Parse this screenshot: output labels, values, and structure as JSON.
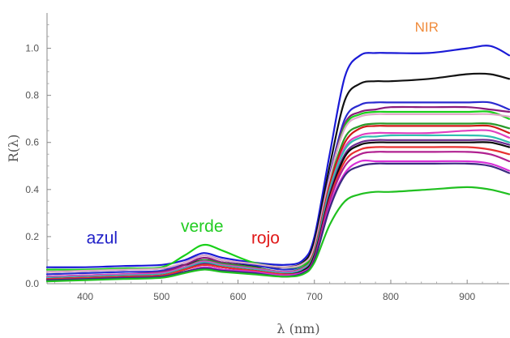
{
  "chart_data": {
    "type": "line",
    "title": "",
    "xlabel": "λ (nm)",
    "ylabel": "R(λ)",
    "xlim": [
      350,
      955
    ],
    "ylim": [
      0,
      1.15
    ],
    "x_ticks": [
      400,
      500,
      600,
      700,
      800,
      900
    ],
    "y_ticks": [
      0.0,
      0.2,
      0.4,
      0.6,
      0.8,
      1.0
    ],
    "x_tick_labels": [
      "400",
      "500",
      "600",
      "700",
      "800",
      "900"
    ],
    "y_tick_labels": [
      "0.0",
      "0.2",
      "0.4",
      "0.6",
      "0.8",
      "1.0"
    ],
    "grid": false,
    "x": [
      350,
      400,
      450,
      500,
      530,
      555,
      580,
      620,
      660,
      685,
      700,
      720,
      740,
      760,
      780,
      800,
      850,
      900,
      930,
      955
    ],
    "series": [
      {
        "color": "#1a1ad6",
        "values": [
          0.07,
          0.07,
          0.075,
          0.08,
          0.1,
          0.13,
          0.11,
          0.09,
          0.08,
          0.1,
          0.2,
          0.55,
          0.88,
          0.97,
          0.98,
          0.98,
          0.98,
          1.0,
          1.01,
          0.97
        ]
      },
      {
        "color": "#111111",
        "values": [
          0.05,
          0.055,
          0.06,
          0.065,
          0.08,
          0.1,
          0.09,
          0.075,
          0.07,
          0.09,
          0.18,
          0.5,
          0.78,
          0.85,
          0.86,
          0.86,
          0.87,
          0.89,
          0.89,
          0.87
        ]
      },
      {
        "color": "#2a2ad0",
        "values": [
          0.04,
          0.045,
          0.05,
          0.055,
          0.09,
          0.12,
          0.1,
          0.08,
          0.06,
          0.08,
          0.16,
          0.46,
          0.7,
          0.76,
          0.77,
          0.77,
          0.77,
          0.77,
          0.77,
          0.74
        ]
      },
      {
        "color": "#8b1a7a",
        "values": [
          0.03,
          0.035,
          0.04,
          0.05,
          0.08,
          0.11,
          0.09,
          0.07,
          0.05,
          0.07,
          0.15,
          0.45,
          0.68,
          0.73,
          0.74,
          0.75,
          0.75,
          0.75,
          0.74,
          0.73
        ]
      },
      {
        "color": "#19d019",
        "values": [
          0.06,
          0.06,
          0.065,
          0.07,
          0.12,
          0.165,
          0.14,
          0.09,
          0.07,
          0.08,
          0.15,
          0.44,
          0.67,
          0.72,
          0.73,
          0.73,
          0.73,
          0.73,
          0.73,
          0.7
        ]
      },
      {
        "color": "#e0a8c8",
        "values": [
          0.05,
          0.055,
          0.06,
          0.065,
          0.09,
          0.12,
          0.1,
          0.085,
          0.07,
          0.085,
          0.16,
          0.45,
          0.66,
          0.71,
          0.72,
          0.72,
          0.72,
          0.72,
          0.72,
          0.71
        ]
      },
      {
        "color": "#2a9a2a",
        "values": [
          0.03,
          0.035,
          0.04,
          0.045,
          0.07,
          0.1,
          0.085,
          0.07,
          0.05,
          0.07,
          0.14,
          0.42,
          0.62,
          0.67,
          0.68,
          0.68,
          0.68,
          0.68,
          0.68,
          0.66
        ]
      },
      {
        "color": "#d01818",
        "values": [
          0.02,
          0.025,
          0.03,
          0.035,
          0.06,
          0.08,
          0.07,
          0.06,
          0.045,
          0.06,
          0.14,
          0.42,
          0.6,
          0.66,
          0.67,
          0.67,
          0.67,
          0.67,
          0.67,
          0.64
        ]
      },
      {
        "color": "#e040c0",
        "values": [
          0.03,
          0.035,
          0.04,
          0.045,
          0.07,
          0.095,
          0.08,
          0.065,
          0.05,
          0.065,
          0.13,
          0.4,
          0.58,
          0.63,
          0.64,
          0.64,
          0.64,
          0.65,
          0.65,
          0.62
        ]
      },
      {
        "color": "#30c0b0",
        "values": [
          0.025,
          0.03,
          0.035,
          0.04,
          0.065,
          0.09,
          0.075,
          0.06,
          0.045,
          0.06,
          0.13,
          0.4,
          0.57,
          0.62,
          0.625,
          0.63,
          0.63,
          0.63,
          0.625,
          0.6
        ]
      },
      {
        "color": "#6a2a90",
        "values": [
          0.02,
          0.025,
          0.03,
          0.035,
          0.06,
          0.085,
          0.07,
          0.055,
          0.04,
          0.055,
          0.12,
          0.38,
          0.55,
          0.6,
          0.61,
          0.61,
          0.61,
          0.61,
          0.61,
          0.59
        ]
      },
      {
        "color": "#0a0a0a",
        "values": [
          0.02,
          0.025,
          0.03,
          0.035,
          0.06,
          0.08,
          0.07,
          0.055,
          0.04,
          0.055,
          0.12,
          0.37,
          0.54,
          0.59,
          0.6,
          0.6,
          0.6,
          0.6,
          0.6,
          0.58
        ]
      },
      {
        "color": "#e83030",
        "values": [
          0.02,
          0.025,
          0.03,
          0.035,
          0.06,
          0.08,
          0.07,
          0.055,
          0.04,
          0.05,
          0.11,
          0.36,
          0.52,
          0.57,
          0.58,
          0.58,
          0.58,
          0.58,
          0.57,
          0.55
        ]
      },
      {
        "color": "#b02090",
        "values": [
          0.015,
          0.02,
          0.025,
          0.03,
          0.05,
          0.07,
          0.06,
          0.05,
          0.035,
          0.05,
          0.11,
          0.35,
          0.5,
          0.55,
          0.56,
          0.56,
          0.56,
          0.56,
          0.55,
          0.52
        ]
      },
      {
        "color": "#d830d8",
        "values": [
          0.015,
          0.02,
          0.025,
          0.03,
          0.05,
          0.07,
          0.06,
          0.05,
          0.035,
          0.05,
          0.1,
          0.33,
          0.47,
          0.52,
          0.52,
          0.52,
          0.52,
          0.52,
          0.51,
          0.48
        ]
      },
      {
        "color": "#3a2a80",
        "values": [
          0.015,
          0.02,
          0.025,
          0.03,
          0.05,
          0.065,
          0.055,
          0.045,
          0.03,
          0.045,
          0.1,
          0.32,
          0.46,
          0.5,
          0.51,
          0.51,
          0.51,
          0.51,
          0.5,
          0.47
        ]
      },
      {
        "color": "#20c020",
        "values": [
          0.01,
          0.015,
          0.02,
          0.025,
          0.045,
          0.06,
          0.05,
          0.04,
          0.03,
          0.04,
          0.09,
          0.25,
          0.35,
          0.38,
          0.39,
          0.39,
          0.4,
          0.41,
          0.4,
          0.38
        ]
      }
    ],
    "annotations": [
      {
        "text": "azul",
        "x": 422,
        "y": 0.17,
        "color": "#2020c8"
      },
      {
        "text": "verde",
        "x": 553,
        "y": 0.22,
        "color": "#22cc22"
      },
      {
        "text": "rojo",
        "x": 636,
        "y": 0.17,
        "color": "#e01818"
      },
      {
        "text": "NIR",
        "x": 847,
        "y": 1.07,
        "color": "#f08c3c"
      }
    ]
  }
}
